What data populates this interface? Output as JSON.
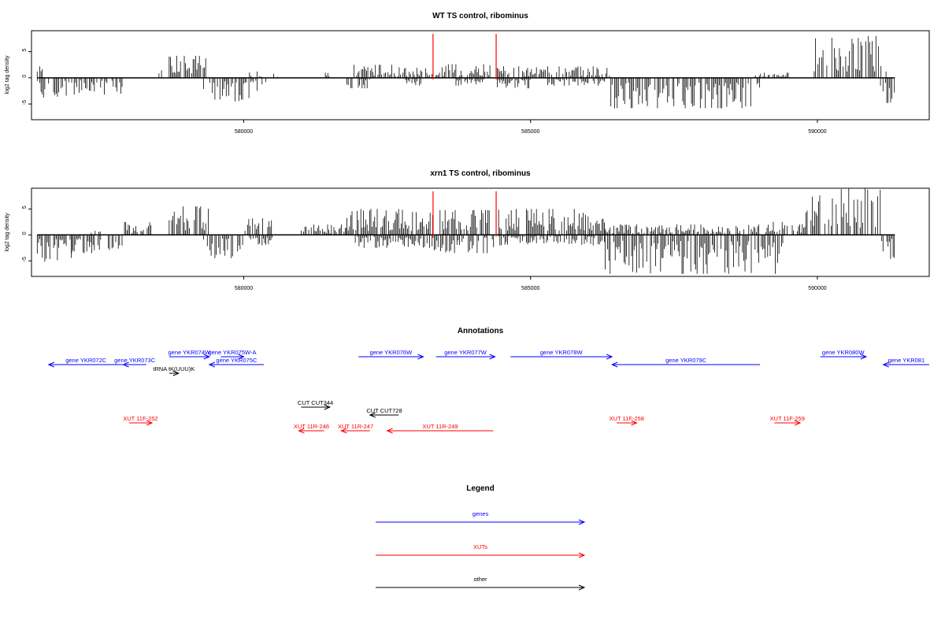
{
  "chart_data": [
    {
      "type": "bar",
      "title": "WT TS control, ribominus",
      "ylabel": "log2 tag density",
      "xlim": [
        576300,
        591950
      ],
      "ylim": [
        -8,
        9
      ],
      "x_ticks": [
        580000,
        585000,
        590000
      ],
      "x_tick_labels": [
        "580000",
        "585000",
        "590000"
      ],
      "y_ticks": [
        -5,
        0,
        5
      ],
      "y_tick_labels": [
        "-5",
        "0",
        "5"
      ],
      "markers": [
        583300,
        584400
      ],
      "marker_color": "#ff0000",
      "series": [
        {
          "strand": "plus",
          "segments": [
            {
              "start": 576400,
              "end": 576500,
              "max": 2.2
            },
            {
              "start": 578500,
              "end": 578600,
              "max": 3.0
            },
            {
              "start": 578700,
              "end": 579400,
              "max": 4.2
            },
            {
              "start": 580100,
              "end": 580300,
              "max": 1.5
            },
            {
              "start": 580500,
              "end": 580600,
              "max": 1.0
            },
            {
              "start": 581400,
              "end": 581500,
              "max": 1.0
            },
            {
              "start": 581900,
              "end": 582600,
              "max": 2.5
            },
            {
              "start": 582600,
              "end": 583500,
              "max": 2.0
            },
            {
              "start": 583500,
              "end": 584300,
              "max": 2.6
            },
            {
              "start": 584400,
              "end": 586400,
              "max": 2.2
            },
            {
              "start": 588900,
              "end": 589500,
              "max": 1.0
            },
            {
              "start": 589900,
              "end": 591200,
              "max": 8.0
            }
          ]
        },
        {
          "strand": "minus",
          "segments": [
            {
              "start": 576400,
              "end": 577000,
              "min": -3.8
            },
            {
              "start": 577000,
              "end": 577900,
              "min": -3.2
            },
            {
              "start": 579300,
              "end": 580100,
              "min": -4.5
            },
            {
              "start": 580100,
              "end": 580400,
              "min": -2.5
            },
            {
              "start": 581800,
              "end": 582200,
              "min": -2.0
            },
            {
              "start": 582800,
              "end": 583100,
              "min": -1.5
            },
            {
              "start": 583700,
              "end": 584200,
              "min": -1.5
            },
            {
              "start": 584400,
              "end": 585000,
              "min": -2.0
            },
            {
              "start": 585300,
              "end": 586300,
              "min": -1.5
            },
            {
              "start": 586400,
              "end": 589000,
              "min": -5.8
            },
            {
              "start": 591100,
              "end": 591350,
              "min": -4.8
            }
          ]
        }
      ]
    },
    {
      "type": "bar",
      "title": "xrn1 TS control, ribominus",
      "ylabel": "log2 tag density",
      "xlim": [
        576300,
        591950
      ],
      "ylim": [
        -8,
        9
      ],
      "x_ticks": [
        580000,
        585000,
        590000
      ],
      "x_tick_labels": [
        "580000",
        "585000",
        "590000"
      ],
      "y_ticks": [
        -5,
        0,
        5
      ],
      "y_tick_labels": [
        "-5",
        "0",
        "5"
      ],
      "markers": [
        583300,
        584400
      ],
      "marker_color": "#ff0000",
      "series": [
        {
          "strand": "plus",
          "segments": [
            {
              "start": 577300,
              "end": 577500,
              "max": 1.0
            },
            {
              "start": 577900,
              "end": 578400,
              "max": 2.5
            },
            {
              "start": 578700,
              "end": 579400,
              "max": 5.5
            },
            {
              "start": 580000,
              "end": 580500,
              "max": 3.2
            },
            {
              "start": 581000,
              "end": 581800,
              "max": 2.0
            },
            {
              "start": 581800,
              "end": 583300,
              "max": 5.0
            },
            {
              "start": 583400,
              "end": 584300,
              "max": 4.8
            },
            {
              "start": 584400,
              "end": 586300,
              "max": 5.0
            },
            {
              "start": 586300,
              "end": 589000,
              "max": 2.0
            },
            {
              "start": 589100,
              "end": 589800,
              "max": 2.5
            },
            {
              "start": 589800,
              "end": 591100,
              "max": 9.0
            }
          ]
        },
        {
          "strand": "minus",
          "segments": [
            {
              "start": 576400,
              "end": 577000,
              "min": -5.2
            },
            {
              "start": 577000,
              "end": 577900,
              "min": -3.5
            },
            {
              "start": 579300,
              "end": 580000,
              "min": -4.5
            },
            {
              "start": 580100,
              "end": 580500,
              "min": -2.0
            },
            {
              "start": 581900,
              "end": 583300,
              "min": -2.5
            },
            {
              "start": 583300,
              "end": 584400,
              "min": -3.5
            },
            {
              "start": 584400,
              "end": 586300,
              "min": -2.0
            },
            {
              "start": 586300,
              "end": 589400,
              "min": -7.5
            },
            {
              "start": 591100,
              "end": 591350,
              "min": -5.0
            }
          ]
        }
      ]
    }
  ],
  "annotations": {
    "title": "Annotations",
    "items": [
      {
        "label": "gene YKR072C",
        "start": 576600,
        "end": 577900,
        "strand": "-",
        "row": 1,
        "color": "#0000ff"
      },
      {
        "label": "gene YKR073C",
        "start": 577900,
        "end": 578300,
        "strand": "-",
        "row": 1,
        "color": "#0000ff"
      },
      {
        "label": "gene YKR074W",
        "start": 578700,
        "end": 579400,
        "strand": "+",
        "row": 0,
        "color": "#0000ff"
      },
      {
        "label": "gene YKR075W-A",
        "start": 579600,
        "end": 580000,
        "strand": "+",
        "row": 0,
        "color": "#0000ff"
      },
      {
        "label": "gene YKR075C",
        "start": 579400,
        "end": 580350,
        "strand": "-",
        "row": 1,
        "color": "#0000ff"
      },
      {
        "label": "tRNA tK(UUU)K",
        "start": 578700,
        "end": 578800,
        "strand": "+",
        "row": 2,
        "color": "#000000"
      },
      {
        "label": "gene YKR076W",
        "start": 582000,
        "end": 583130,
        "strand": "+",
        "row": 0,
        "color": "#0000ff"
      },
      {
        "label": "gene YKR077W",
        "start": 583350,
        "end": 584380,
        "strand": "+",
        "row": 0,
        "color": "#0000ff"
      },
      {
        "label": "gene YKR078W",
        "start": 584650,
        "end": 586420,
        "strand": "+",
        "row": 0,
        "color": "#0000ff"
      },
      {
        "label": "gene YKR079C",
        "start": 586420,
        "end": 589000,
        "strand": "-",
        "row": 1,
        "color": "#0000ff"
      },
      {
        "label": "gene YKR080W",
        "start": 590050,
        "end": 590850,
        "strand": "+",
        "row": 0,
        "color": "#0000ff"
      },
      {
        "label": "gene YKR081",
        "start": 591150,
        "end": 591950,
        "strand": "-",
        "row": 1,
        "color": "#0000ff"
      },
      {
        "label": "CUT CUT344",
        "start": 581000,
        "end": 581500,
        "strand": "+",
        "row": 3,
        "color": "#000000"
      },
      {
        "label": "CUT CUT728",
        "start": 582200,
        "end": 582700,
        "strand": "-",
        "row": 4,
        "color": "#000000"
      },
      {
        "label": "XUT 11F-252",
        "start": 578000,
        "end": 578400,
        "strand": "+",
        "row": 5,
        "color": "#ff0000"
      },
      {
        "label": "XUT 11R-246",
        "start": 580960,
        "end": 581400,
        "strand": "-",
        "row": 6,
        "color": "#ff0000"
      },
      {
        "label": "XUT 11R-247",
        "start": 581700,
        "end": 582200,
        "strand": "-",
        "row": 6,
        "color": "#ff0000"
      },
      {
        "label": "XUT 11R-249",
        "start": 582500,
        "end": 584350,
        "strand": "-",
        "row": 6,
        "color": "#ff0000"
      },
      {
        "label": "XUT 11F-258",
        "start": 586500,
        "end": 586850,
        "strand": "+",
        "row": 5,
        "color": "#ff0000"
      },
      {
        "label": "XUT 11F-259",
        "start": 589250,
        "end": 589700,
        "strand": "+",
        "row": 5,
        "color": "#ff0000"
      }
    ]
  },
  "legend": {
    "title": "Legend",
    "entries": [
      {
        "label": "genes",
        "color": "#0000ff"
      },
      {
        "label": "XUTs",
        "color": "#ff0000"
      },
      {
        "label": "other",
        "color": "#000000"
      }
    ]
  }
}
